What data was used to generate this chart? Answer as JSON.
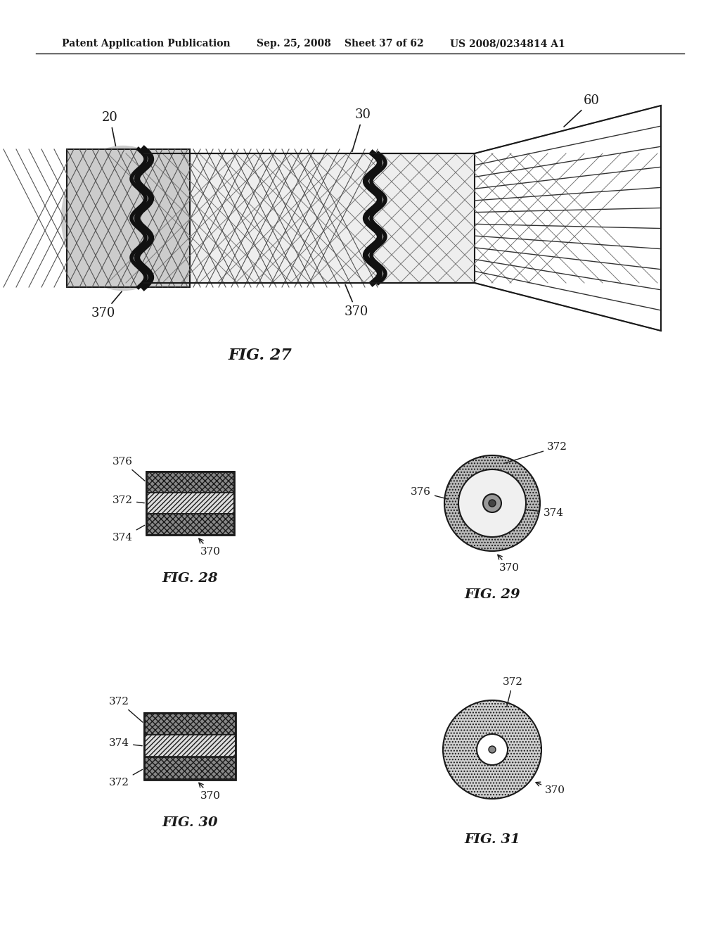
{
  "background_color": "#ffffff",
  "header_text": "Patent Application Publication",
  "header_date": "Sep. 25, 2008",
  "header_sheet": "Sheet 37 of 62",
  "header_patent": "US 2008/0234814 A1",
  "fig27_label": "FIG. 27",
  "fig28_label": "FIG. 28",
  "fig29_label": "FIG. 29",
  "fig30_label": "FIG. 30",
  "fig31_label": "FIG. 31",
  "line_color": "#1a1a1a"
}
